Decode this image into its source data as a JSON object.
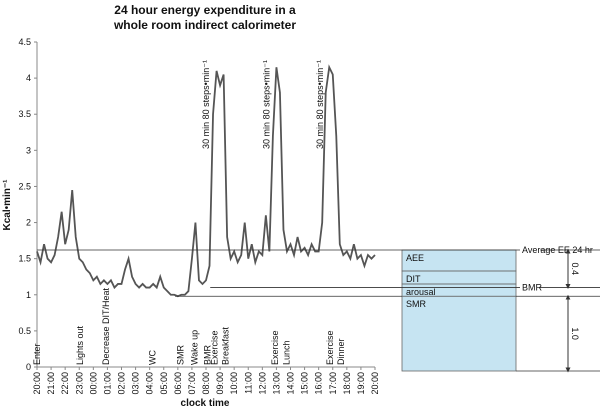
{
  "chart_data": {
    "type": "line",
    "title": [
      "24 hour energy expenditure in a",
      "whole room indirect calorimeter"
    ],
    "ylabel": "Kcal•min⁻¹",
    "xlabel": "clock time",
    "xlim": [
      0,
      24
    ],
    "xticks": [
      {
        "value": 0,
        "label": "20:00"
      },
      {
        "value": 1,
        "label": "21:00"
      },
      {
        "value": 2,
        "label": "22:00"
      },
      {
        "value": 3,
        "label": "23:00"
      },
      {
        "value": 4,
        "label": "00:00"
      },
      {
        "value": 5,
        "label": "01:00"
      },
      {
        "value": 6,
        "label": "02:00"
      },
      {
        "value": 7,
        "label": "03:00"
      },
      {
        "value": 8,
        "label": "04:00"
      },
      {
        "value": 9,
        "label": "05:00"
      },
      {
        "value": 10,
        "label": "06:00"
      },
      {
        "value": 11,
        "label": "07:00"
      },
      {
        "value": 12,
        "label": "08:00"
      },
      {
        "value": 13,
        "label": "09:00"
      },
      {
        "value": 14,
        "label": "10:00"
      },
      {
        "value": 15,
        "label": "11:00"
      },
      {
        "value": 16,
        "label": "12:00"
      },
      {
        "value": 17,
        "label": "13:00"
      },
      {
        "value": 18,
        "label": "14:00"
      },
      {
        "value": 19,
        "label": "15:00"
      },
      {
        "value": 20,
        "label": "16:00"
      },
      {
        "value": 21,
        "label": "17:00"
      },
      {
        "value": 22,
        "label": "18:00"
      },
      {
        "value": 23,
        "label": "19:00"
      },
      {
        "value": 24,
        "label": "20:00"
      }
    ],
    "ylim": [
      0,
      4.5
    ],
    "yticks": [
      0,
      0.5,
      1,
      1.5,
      2,
      2.5,
      3,
      3.5,
      4,
      4.5
    ],
    "color": "#555555",
    "x": [
      0,
      0.25,
      0.5,
      0.75,
      1,
      1.25,
      1.5,
      1.75,
      2,
      2.25,
      2.5,
      2.75,
      3,
      3.25,
      3.5,
      3.75,
      4,
      4.25,
      4.5,
      4.75,
      5,
      5.25,
      5.5,
      5.75,
      6,
      6.25,
      6.5,
      6.75,
      7,
      7.25,
      7.5,
      7.75,
      8,
      8.25,
      8.5,
      8.75,
      9,
      9.25,
      9.5,
      9.75,
      10,
      10.25,
      10.5,
      10.75,
      11,
      11.25,
      11.5,
      11.75,
      12,
      12.25,
      12.5,
      12.75,
      13,
      13.25,
      13.5,
      13.75,
      14,
      14.25,
      14.5,
      14.75,
      15,
      15.25,
      15.5,
      15.75,
      16,
      16.25,
      16.5,
      16.75,
      17,
      17.25,
      17.5,
      17.75,
      18,
      18.25,
      18.5,
      18.75,
      19,
      19.25,
      19.5,
      19.75,
      20,
      20.25,
      20.5,
      20.75,
      21,
      21.25,
      21.5,
      21.75,
      22,
      22.25,
      22.5,
      22.75,
      23,
      23.25,
      23.5,
      23.75,
      24
    ],
    "values": [
      1.6,
      1.45,
      1.7,
      1.5,
      1.45,
      1.55,
      1.8,
      2.15,
      1.7,
      1.9,
      2.45,
      1.8,
      1.5,
      1.45,
      1.35,
      1.3,
      1.2,
      1.25,
      1.15,
      1.2,
      1.15,
      1.2,
      1.1,
      1.15,
      1.15,
      1.35,
      1.5,
      1.25,
      1.15,
      1.1,
      1.15,
      1.1,
      1.1,
      1.15,
      1.1,
      1.25,
      1.1,
      1.05,
      1.0,
      1.0,
      0.98,
      1.0,
      1.0,
      1.05,
      1.5,
      2.0,
      1.2,
      1.15,
      1.2,
      1.4,
      3.5,
      4.1,
      3.9,
      4.05,
      1.8,
      1.5,
      1.6,
      1.45,
      1.55,
      2.0,
      1.5,
      1.7,
      1.45,
      1.6,
      1.55,
      2.1,
      1.6,
      3.2,
      4.15,
      3.8,
      1.9,
      1.6,
      1.7,
      1.55,
      1.8,
      1.6,
      1.65,
      1.55,
      1.7,
      1.6,
      1.6,
      2.0,
      3.8,
      4.15,
      4.05,
      3.2,
      1.7,
      1.55,
      1.6,
      1.5,
      1.7,
      1.5,
      1.55,
      1.4,
      1.55,
      1.5,
      1.55
    ],
    "annotations": [
      {
        "text": "Enter",
        "x": 0
      },
      {
        "text": "Lights out",
        "x": 3.05
      },
      {
        "text": "Decrease DIT/Heat",
        "x": 4.9
      },
      {
        "text": "WC",
        "x": 8.2
      },
      {
        "text": "SMR",
        "x": 10.2
      },
      {
        "text": "Wake up",
        "x": 11.2
      },
      {
        "text": "BMR",
        "x": 12.1
      },
      {
        "text": "Exercise",
        "x": 12.6
      },
      {
        "text": "Breakfast",
        "x": 13.4
      },
      {
        "text": "Exercise",
        "x": 16.9
      },
      {
        "text": "Lunch",
        "x": 17.7
      },
      {
        "text": "Exercise",
        "x": 20.8
      },
      {
        "text": "Dinner",
        "x": 21.6
      }
    ],
    "peak_labels": [
      {
        "text": "30 min 80 steps•min⁻¹",
        "x": 12.0
      },
      {
        "text": "30 min 80 steps•min⁻¹",
        "x": 16.3
      },
      {
        "text": "30 min 80 steps•min⁻¹",
        "x": 20.1
      }
    ],
    "hlines": [
      {
        "label": "Average EE 24 hr",
        "value": 1.62,
        "from": 0
      },
      {
        "label": "BMR",
        "value": 1.1,
        "from": 12.3
      }
    ],
    "components": [
      {
        "name": "SMR",
        "value": 0.98
      },
      {
        "name": "arousal",
        "value": 0.17
      },
      {
        "name": "DIT",
        "value": 0.18
      },
      {
        "name": "AEE",
        "value": 0.29
      }
    ],
    "component_color": "#c6e4f2",
    "brackets": [
      {
        "value": 0.4,
        "label": "0.4"
      },
      {
        "value": 1,
        "label": "1.0"
      }
    ]
  }
}
